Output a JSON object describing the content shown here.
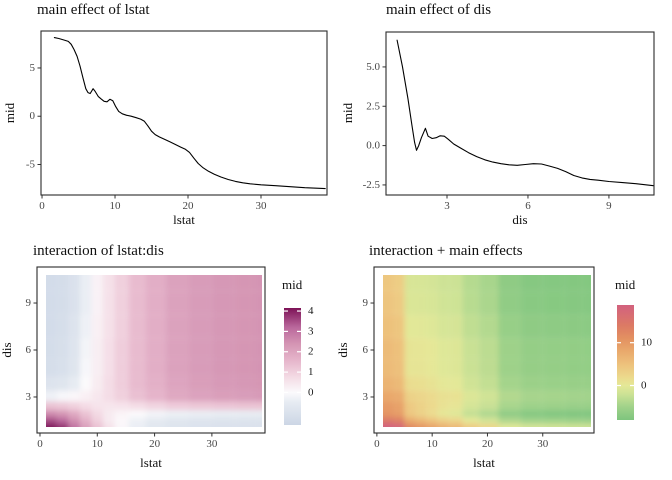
{
  "chart_data": [
    {
      "type": "line",
      "title": "main effect of lstat",
      "xlabel": "lstat",
      "ylabel": "mid",
      "x_range": [
        -0.14,
        39.04
      ],
      "y_range": [
        -8.16,
        8.83
      ],
      "x_ticks": {
        "values": [
          0,
          10,
          20,
          30
        ],
        "labels": [
          "0",
          "10",
          "20",
          "30"
        ]
      },
      "y_ticks": {
        "values": [
          5,
          0,
          -5
        ],
        "labels": [
          "5",
          "0",
          "-5"
        ]
      },
      "grid_lines": false,
      "line_color": "#000000",
      "series": {
        "name": "mid",
        "points": [
          [
            1.7,
            8.15
          ],
          [
            2.3,
            8.05
          ],
          [
            3.0,
            7.9
          ],
          [
            3.6,
            7.75
          ],
          [
            4.0,
            7.45
          ],
          [
            4.4,
            6.9
          ],
          [
            4.8,
            6.2
          ],
          [
            5.2,
            5.2
          ],
          [
            5.6,
            4.0
          ],
          [
            6.0,
            2.85
          ],
          [
            6.3,
            2.45
          ],
          [
            6.6,
            2.35
          ],
          [
            7.0,
            2.85
          ],
          [
            7.3,
            2.55
          ],
          [
            7.7,
            2.05
          ],
          [
            8.1,
            1.8
          ],
          [
            8.5,
            1.55
          ],
          [
            8.9,
            1.5
          ],
          [
            9.3,
            1.75
          ],
          [
            9.7,
            1.6
          ],
          [
            10.1,
            1.0
          ],
          [
            10.5,
            0.5
          ],
          [
            11.0,
            0.25
          ],
          [
            11.6,
            0.1
          ],
          [
            12.2,
            0.0
          ],
          [
            12.9,
            -0.15
          ],
          [
            13.5,
            -0.3
          ],
          [
            14.0,
            -0.5
          ],
          [
            14.5,
            -1.0
          ],
          [
            15.0,
            -1.55
          ],
          [
            15.5,
            -1.9
          ],
          [
            16.1,
            -2.15
          ],
          [
            16.8,
            -2.4
          ],
          [
            17.5,
            -2.65
          ],
          [
            18.2,
            -2.9
          ],
          [
            19.0,
            -3.2
          ],
          [
            19.6,
            -3.4
          ],
          [
            20.2,
            -3.75
          ],
          [
            20.8,
            -4.35
          ],
          [
            21.4,
            -4.9
          ],
          [
            22.0,
            -5.3
          ],
          [
            22.8,
            -5.7
          ],
          [
            23.6,
            -6.0
          ],
          [
            24.5,
            -6.3
          ],
          [
            25.5,
            -6.55
          ],
          [
            26.5,
            -6.75
          ],
          [
            27.5,
            -6.9
          ],
          [
            28.5,
            -7.0
          ],
          [
            30.0,
            -7.1
          ],
          [
            32.0,
            -7.2
          ],
          [
            34.0,
            -7.3
          ],
          [
            36.0,
            -7.4
          ],
          [
            38.8,
            -7.5
          ]
        ]
      }
    },
    {
      "type": "line",
      "title": "main effect of dis",
      "xlabel": "dis",
      "ylabel": "mid",
      "x_range": [
        0.74,
        10.67
      ],
      "y_range": [
        -3.14,
        7.22
      ],
      "x_ticks": {
        "values": [
          3,
          6,
          9
        ],
        "labels": [
          "3",
          "6",
          "9"
        ]
      },
      "y_ticks": {
        "values": [
          5.0,
          2.5,
          0.0,
          -2.5
        ],
        "labels": [
          "5.0",
          "2.5",
          "0.0",
          "-2.5"
        ]
      },
      "grid_lines": false,
      "line_color": "#000000",
      "series": {
        "name": "mid",
        "points": [
          [
            1.15,
            6.7
          ],
          [
            1.35,
            5.0
          ],
          [
            1.55,
            3.0
          ],
          [
            1.7,
            1.3
          ],
          [
            1.8,
            0.2
          ],
          [
            1.87,
            -0.3
          ],
          [
            1.95,
            0.0
          ],
          [
            2.05,
            0.5
          ],
          [
            2.2,
            1.1
          ],
          [
            2.3,
            0.6
          ],
          [
            2.45,
            0.45
          ],
          [
            2.6,
            0.5
          ],
          [
            2.75,
            0.62
          ],
          [
            2.9,
            0.6
          ],
          [
            3.05,
            0.4
          ],
          [
            3.25,
            0.1
          ],
          [
            3.5,
            -0.15
          ],
          [
            3.8,
            -0.45
          ],
          [
            4.1,
            -0.7
          ],
          [
            4.4,
            -0.9
          ],
          [
            4.7,
            -1.05
          ],
          [
            5.0,
            -1.15
          ],
          [
            5.3,
            -1.22
          ],
          [
            5.6,
            -1.25
          ],
          [
            5.9,
            -1.2
          ],
          [
            6.2,
            -1.15
          ],
          [
            6.5,
            -1.17
          ],
          [
            6.8,
            -1.3
          ],
          [
            7.1,
            -1.45
          ],
          [
            7.4,
            -1.65
          ],
          [
            7.7,
            -1.9
          ],
          [
            8.0,
            -2.05
          ],
          [
            8.3,
            -2.15
          ],
          [
            8.6,
            -2.2
          ],
          [
            9.0,
            -2.28
          ],
          [
            9.5,
            -2.35
          ],
          [
            10.0,
            -2.42
          ],
          [
            10.65,
            -2.55
          ]
        ]
      }
    },
    {
      "type": "heatmap",
      "title": "interaction of lstat:dis",
      "xlabel": "lstat",
      "ylabel": "dis",
      "x_range": [
        -0.52,
        39.27
      ],
      "y_range": [
        0.7,
        11.3
      ],
      "x_ticks": {
        "values": [
          0,
          10,
          20,
          30
        ],
        "labels": [
          "0",
          "10",
          "20",
          "30"
        ]
      },
      "y_ticks": {
        "values": [
          9,
          6,
          3
        ],
        "labels": [
          "9",
          "6",
          "3"
        ]
      },
      "grid": {
        "x": [
          2,
          4,
          6,
          8,
          10,
          12,
          14,
          17,
          20,
          24,
          28,
          32,
          36,
          38.5
        ],
        "y": [
          10.5,
          9.0,
          7.5,
          6.0,
          4.8,
          3.8,
          3.0,
          2.4,
          1.9,
          1.5,
          1.1
        ],
        "values": [
          [
            -1.3,
            -1.25,
            -1.0,
            -0.4,
            0.2,
            0.6,
            1.0,
            1.45,
            1.75,
            2.05,
            2.2,
            2.3,
            2.35,
            2.4
          ],
          [
            -1.3,
            -1.25,
            -1.0,
            -0.4,
            0.2,
            0.6,
            1.0,
            1.45,
            1.75,
            2.05,
            2.2,
            2.3,
            2.35,
            2.4
          ],
          [
            -1.3,
            -1.2,
            -0.9,
            -0.3,
            0.25,
            0.6,
            1.0,
            1.45,
            1.75,
            2.05,
            2.2,
            2.3,
            2.35,
            2.4
          ],
          [
            -1.25,
            -1.15,
            -0.85,
            -0.2,
            0.3,
            0.65,
            1.05,
            1.45,
            1.75,
            2.05,
            2.2,
            2.3,
            2.35,
            2.4
          ],
          [
            -1.2,
            -1.1,
            -0.8,
            -0.1,
            0.3,
            0.65,
            1.05,
            1.45,
            1.75,
            2.05,
            2.2,
            2.3,
            2.35,
            2.4
          ],
          [
            -0.9,
            -0.8,
            -0.5,
            0.0,
            0.35,
            0.7,
            1.05,
            1.45,
            1.7,
            2.0,
            2.15,
            2.25,
            2.3,
            2.35
          ],
          [
            -0.3,
            -0.1,
            0.1,
            0.25,
            0.45,
            0.7,
            1.0,
            1.35,
            1.6,
            1.9,
            2.05,
            2.15,
            2.2,
            2.25
          ],
          [
            1.3,
            1.2,
            1.0,
            0.75,
            0.55,
            0.5,
            0.55,
            0.7,
            0.9,
            1.1,
            1.2,
            1.25,
            1.3,
            1.3
          ],
          [
            2.6,
            2.4,
            1.9,
            1.3,
            0.8,
            0.4,
            0.15,
            0.0,
            -0.2,
            -0.35,
            -0.4,
            -0.45,
            -0.45,
            -0.45
          ],
          [
            3.5,
            3.2,
            2.5,
            1.7,
            1.0,
            0.4,
            0.05,
            -0.3,
            -0.6,
            -0.75,
            -0.85,
            -0.9,
            -0.9,
            -0.9
          ],
          [
            4.1,
            3.8,
            3.0,
            2.1,
            1.3,
            0.6,
            0.1,
            -0.4,
            -0.7,
            -0.85,
            -0.95,
            -1.0,
            -1.0,
            -1.0
          ]
        ]
      },
      "color_scale": {
        "range": [
          -1.6,
          4.15
        ],
        "stops": [
          [
            -1.6,
            "#ccd6e5"
          ],
          [
            -0.5,
            "#e6ebf2"
          ],
          [
            0,
            "#fbfafc"
          ],
          [
            0.8,
            "#f3d9e3"
          ],
          [
            1.6,
            "#e5b4ca"
          ],
          [
            2.4,
            "#d494b3"
          ],
          [
            3.2,
            "#ba689c"
          ],
          [
            4.15,
            "#7d1257"
          ]
        ]
      },
      "legend": {
        "title": "mid",
        "ticks": {
          "values": [
            4,
            3,
            2,
            1,
            0
          ],
          "labels": [
            "4",
            "3",
            "2",
            "1",
            "0"
          ]
        }
      }
    },
    {
      "type": "heatmap",
      "title": "interaction + main effects",
      "xlabel": "lstat",
      "ylabel": "dis",
      "x_range": [
        -0.52,
        39.27
      ],
      "y_range": [
        0.7,
        11.3
      ],
      "x_ticks": {
        "values": [
          0,
          10,
          20,
          30
        ],
        "labels": [
          "0",
          "10",
          "20",
          "30"
        ]
      },
      "y_ticks": {
        "values": [
          9,
          6,
          3
        ],
        "labels": [
          "9",
          "6",
          "3"
        ]
      },
      "grid": {
        "x": [
          2,
          4,
          6,
          8,
          10,
          12,
          14,
          17,
          20,
          24,
          28,
          32,
          36,
          38.5
        ],
        "y": [
          10.5,
          9.0,
          7.5,
          6.0,
          4.8,
          3.8,
          3.0,
          2.4,
          1.9,
          1.5,
          1.1
        ],
        "values": [
          [
            4.3,
            3.55,
            -1.0,
            -1.1,
            -1.3,
            -1.9,
            -2.0,
            -3.55,
            -4.45,
            -6.55,
            -7.3,
            -7.4,
            -7.55,
            -7.6
          ],
          [
            4.5,
            3.75,
            -0.8,
            -0.9,
            -1.1,
            -1.7,
            -1.8,
            -3.35,
            -4.25,
            -6.35,
            -7.1,
            -7.2,
            -7.35,
            -7.4
          ],
          [
            5.05,
            4.35,
            -0.15,
            -0.25,
            -0.5,
            -1.15,
            -1.25,
            -2.8,
            -3.7,
            -5.8,
            -6.55,
            -6.65,
            -6.8,
            -6.85
          ],
          [
            5.7,
            5.0,
            0.5,
            0.45,
            0.15,
            -0.5,
            -0.6,
            -2.2,
            -3.1,
            -5.2,
            -5.95,
            -6.05,
            -6.2,
            -6.25
          ],
          [
            5.8,
            5.1,
            0.6,
            0.6,
            0.2,
            -0.45,
            -0.55,
            -2.15,
            -3.05,
            -5.15,
            -5.9,
            -6.0,
            -6.15,
            -6.2
          ],
          [
            6.6,
            5.9,
            1.5,
            1.2,
            0.75,
            0.1,
            -0.05,
            -1.65,
            -2.6,
            -4.7,
            -5.45,
            -5.55,
            -5.7,
            -5.75
          ],
          [
            8.2,
            7.6,
            3.0,
            2.45,
            1.85,
            1.1,
            0.9,
            -0.75,
            -1.7,
            -3.8,
            -4.55,
            -4.65,
            -4.8,
            -4.85
          ],
          [
            9.9,
            9.0,
            4.0,
            3.05,
            2.05,
            1.0,
            0.55,
            -1.3,
            -2.3,
            -4.5,
            -5.3,
            -5.45,
            -5.6,
            -5.7
          ],
          [
            10.6,
            9.6,
            4.3,
            3.0,
            1.7,
            0.3,
            -0.45,
            -2.6,
            -4.0,
            -6.55,
            -7.5,
            -7.75,
            -7.95,
            -8.05
          ],
          [
            14.4,
            13.3,
            7.8,
            6.3,
            4.8,
            3.2,
            2.35,
            0.0,
            -1.5,
            -4.05,
            -5.05,
            -5.3,
            -5.5,
            -5.6
          ],
          [
            18.8,
            17.7,
            12.1,
            10.5,
            8.9,
            7.2,
            6.2,
            3.7,
            2.2,
            -0.35,
            -1.35,
            -1.6,
            -1.8,
            -1.9
          ]
        ]
      },
      "color_scale": {
        "range": [
          -8.05,
          18.8
        ],
        "stops": [
          [
            -8.05,
            "#7ec57e"
          ],
          [
            -5,
            "#a0d28a"
          ],
          [
            -2,
            "#cce295"
          ],
          [
            0,
            "#e4e897"
          ],
          [
            2,
            "#ecd98c"
          ],
          [
            5,
            "#edc17c"
          ],
          [
            8,
            "#e9a96c"
          ],
          [
            11,
            "#e39161"
          ],
          [
            14,
            "#dc7a64"
          ],
          [
            16.5,
            "#d76d73"
          ],
          [
            18.8,
            "#d2617e"
          ]
        ]
      },
      "legend": {
        "title": "mid",
        "ticks": {
          "values": [
            10,
            0
          ],
          "labels": [
            "10",
            "0"
          ]
        }
      }
    }
  ]
}
